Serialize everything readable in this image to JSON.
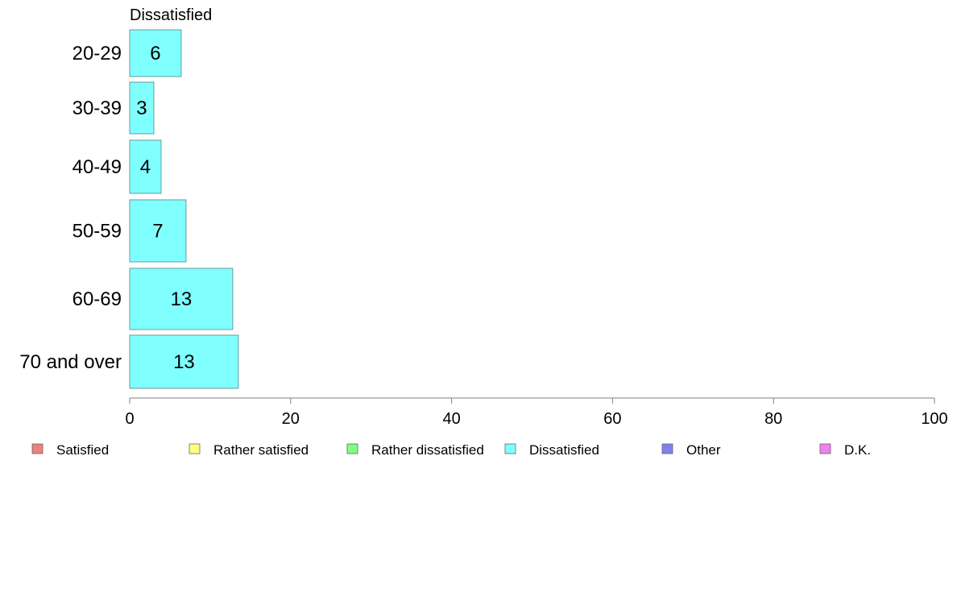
{
  "chart_data": {
    "type": "bar",
    "orientation": "horizontal",
    "title": "Dissatisfied",
    "categories": [
      "20-29",
      "30-39",
      "40-49",
      "50-59",
      "60-69",
      "70 and over"
    ],
    "series": [
      {
        "name": "Dissatisfied",
        "values": [
          6.4,
          3.0,
          3.9,
          7.0,
          12.8,
          13.5
        ],
        "labels": [
          "6",
          "3",
          "4",
          "7",
          "13",
          "13"
        ]
      }
    ],
    "xlim": [
      0,
      100
    ],
    "xticks": [
      0,
      20,
      40,
      60,
      80,
      100
    ],
    "grid": false,
    "legend_position": "bottom",
    "legend": [
      "Satisfied",
      "Rather satisfied",
      "Rather dissatisfied",
      "Dissatisfied",
      "Other",
      "D.K."
    ]
  },
  "colors": {
    "Satisfied": "#f08080",
    "Rather satisfied": "#ffff80",
    "Rather dissatisfied": "#80ff80",
    "Dissatisfied": "#80ffff",
    "Other": "#8080f0",
    "D.K.": "#f080f0",
    "bar_stroke": "#6a9a9a",
    "axis": "#808080"
  }
}
